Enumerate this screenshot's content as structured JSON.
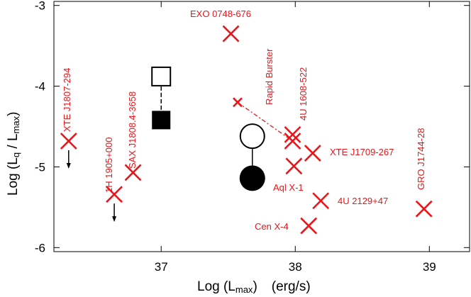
{
  "chart_data": {
    "type": "scatter",
    "title": "",
    "xlabel_parts": [
      "Log (L",
      "max",
      ")",
      "(erg/s)"
    ],
    "ylabel_parts": [
      "Log (L",
      "q",
      " / L",
      "max",
      ")"
    ],
    "xlim": [
      36.2,
      39.3
    ],
    "ylim": [
      -6.05,
      -2.95
    ],
    "x_ticks": [
      37,
      38,
      39
    ],
    "x_tick_labels": [
      "37",
      "38",
      "39"
    ],
    "y_ticks": [
      -3,
      -4,
      -5,
      -6
    ],
    "y_tick_labels": [
      "-3",
      "-4",
      "-5",
      "-6"
    ],
    "grid": false,
    "colors": {
      "sources": "#e8161b",
      "markers": "#000000"
    },
    "sources": [
      {
        "name": "XTE J1807-294",
        "x": 36.31,
        "y": -4.68,
        "upper_limit": true
      },
      {
        "name": "1H 1905+000",
        "x": 36.65,
        "y": -5.34,
        "upper_limit": true
      },
      {
        "name": "SAX J1808.4-3658",
        "x": 36.79,
        "y": -5.07,
        "upper_limit": false
      },
      {
        "name": "EXO 0748-676",
        "x": 37.52,
        "y": -3.35,
        "upper_limit": false
      },
      {
        "name": "Rapid Burster",
        "x": 37.57,
        "y": -4.2,
        "upper_limit": false,
        "small": true
      },
      {
        "name": "4U 1608-522",
        "x": 37.98,
        "y": -4.68,
        "upper_limit": false
      },
      {
        "name": "4U 1608-522 (2)",
        "x": 37.98,
        "y": -4.6,
        "upper_limit": false
      },
      {
        "name": "XTE J1709-267",
        "x": 38.13,
        "y": -4.83,
        "upper_limit": false
      },
      {
        "name": "Aql X-1",
        "x": 37.99,
        "y": -4.99,
        "upper_limit": false
      },
      {
        "name": "4U 2129+47",
        "x": 38.19,
        "y": -5.42,
        "upper_limit": false
      },
      {
        "name": "Cen X-4",
        "x": 38.1,
        "y": -5.73,
        "upper_limit": false
      },
      {
        "name": "GRO J1744-28",
        "x": 38.96,
        "y": -5.52,
        "upper_limit": false
      }
    ],
    "visible_labels": [
      "XTE J1807-294",
      "1H 1905+000",
      "SAX J1808.4-3658",
      "EXO 0748-676",
      "Rapid Burster",
      "4U 1608-522",
      "XTE J1709-267",
      "Aql X-1",
      "4U 2129+47",
      "Cen X-4",
      "GRO J1744-28"
    ],
    "rapid_burster_track": {
      "from": [
        37.57,
        -4.2
      ],
      "to": [
        37.98,
        -4.68
      ]
    },
    "square_pair": {
      "x": 37.0,
      "open_y": -3.88,
      "filled_y": -4.42
    },
    "circle_pair": {
      "x": 37.68,
      "open_y": -4.62,
      "filled_y": -5.14
    }
  }
}
